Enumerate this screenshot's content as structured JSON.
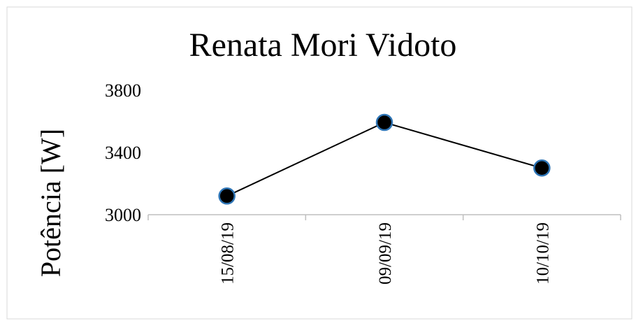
{
  "chart_data": {
    "type": "line",
    "title": "Renata Mori Vidoto",
    "y_label": "Potência [W]",
    "categories": [
      "15/08/19",
      "09/09/19",
      "10/10/19"
    ],
    "values": [
      3120,
      3593,
      3300
    ],
    "color": "#000000",
    "marker_color": "#000000",
    "marker_edge_color": "#2e75b6",
    "ylim": [
      3000,
      3800
    ],
    "yticks": [
      3000,
      3400,
      3800
    ],
    "grid": false
  }
}
